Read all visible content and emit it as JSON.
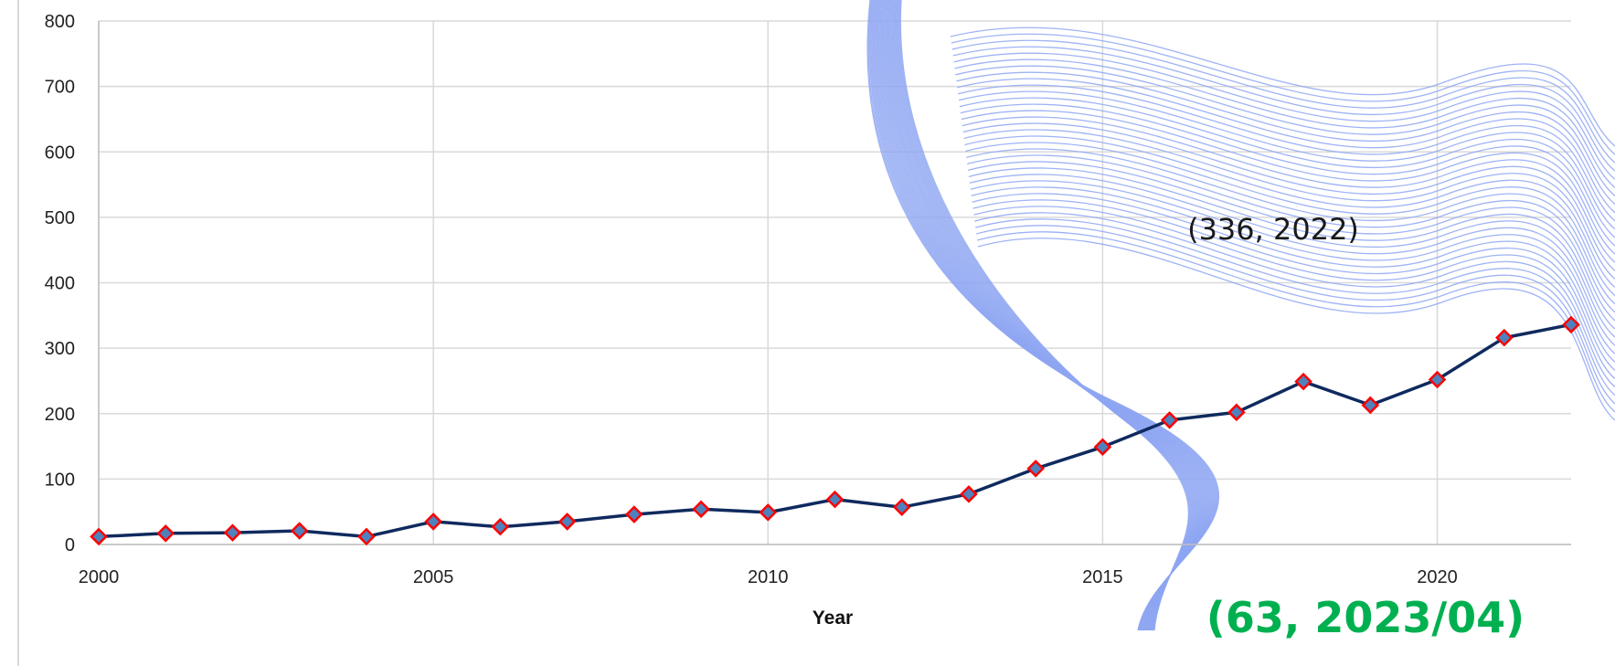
{
  "chart_data": {
    "type": "line",
    "title": "",
    "xlabel": "Year",
    "ylabel": "",
    "xlim": [
      2000,
      2022
    ],
    "ylim": [
      0,
      800
    ],
    "x_ticks": [
      "2000",
      "2005",
      "2010",
      "2015",
      "2020"
    ],
    "y_ticks": [
      "0",
      "100",
      "200",
      "300",
      "400",
      "500",
      "600",
      "700",
      "800"
    ],
    "grid": true,
    "legend": "none",
    "series": [
      {
        "x": [
          2000,
          2001,
          2002,
          2003,
          2004,
          2005,
          2006,
          2007,
          2008,
          2009,
          2010,
          2011,
          2012,
          2013,
          2014,
          2015,
          2016,
          2017,
          2018,
          2019,
          2020,
          2021,
          2022
        ],
        "values": [
          12,
          17,
          18,
          21,
          12,
          35,
          27,
          35,
          46,
          54,
          49,
          69,
          57,
          77,
          116,
          149,
          190,
          202,
          249,
          213,
          252,
          316,
          336
        ],
        "line_color": "#0f2a5e",
        "marker_fill": "#4f81bd",
        "marker_edge": "#ff0000"
      }
    ],
    "annotations": [
      {
        "text": "(336, 2022)",
        "color": "#1a1a1a"
      },
      {
        "text": "(63, 2023/04)",
        "color": "#00b050"
      }
    ],
    "overlay_colors": {
      "wave": "#8ea6f2"
    }
  }
}
